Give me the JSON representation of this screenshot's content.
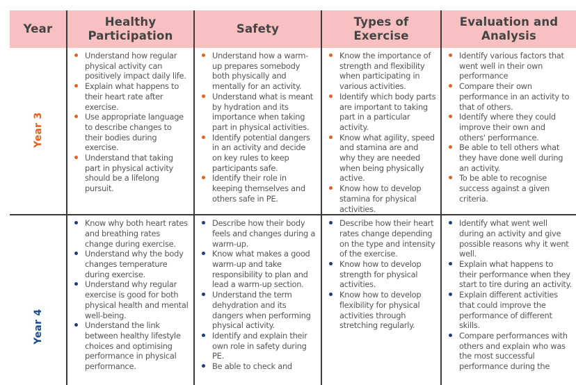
{
  "table": {
    "headers": [
      "Year",
      "Healthy Participation",
      "Safety",
      "Types of Exercise",
      "Evaluation and Analysis"
    ],
    "colors": {
      "header_bg": "#f8c0c0",
      "year3_accent": "#e8601c",
      "year4_accent": "#1f4e8c",
      "text": "#555555",
      "border": "#3a3a3a"
    },
    "rows": [
      {
        "year": "Year 3",
        "healthy_participation": [
          "Understand how regular physical activity can positively impact daily life.",
          "Explain what happens to their heart rate after exercise.",
          "Use appropriate language to describe changes to their bodies during exercise.",
          "Understand that taking part in physical activity should be a lifelong pursuit."
        ],
        "safety": [
          "Understand how a warm-up prepares somebody both physically and mentally for an activity.",
          "Understand what is meant by hydration and its importance when taking part in physical activities.",
          "Identify potential dangers in an activity and decide on key rules to keep participants safe.",
          "Identify their role in keeping themselves and others safe in PE."
        ],
        "types_of_exercise": [
          "Know the importance of strength and flexibility when participating in various activities.",
          "Identify which body parts are important to taking part in a particular activity.",
          "Know what agility, speed and stamina are and why they are needed when being physically active.",
          "Know how to develop stamina for physical activities."
        ],
        "evaluation_and_analysis": [
          "Identify various factors that went well in their own performance",
          "Compare their own performance in an activity to that of others.",
          "Identify where they could improve their own and others' performance.",
          "Be able to tell others what they have done well during an activity.",
          "To be able to recognise success against a given criteria."
        ]
      },
      {
        "year": "Year 4",
        "healthy_participation": [
          "Know why both heart rates and breathing rates change during exercise.",
          "Understand why the body changes temperature during exercise.",
          "Understand why regular exercise is good for both physical health and mental well-being.",
          "Understand the link between healthy lifestyle choices and optimising performance in physical performance."
        ],
        "safety": [
          "Describe how their body feels and changes during a warm-up.",
          "Know what makes a good warm-up and take responsibility to plan and lead a warm-up section.",
          "Understand the term dehydration and its dangers when performing physical activity.",
          "Identify and explain their own role in safety during PE.",
          "Be able to check and"
        ],
        "types_of_exercise": [
          "Describe how their heart rates change depending on the type and intensity of the exercise.",
          "Know how to develop strength for physical activities.",
          "Know how to develop flexibility for physical activities through stretching regularly."
        ],
        "evaluation_and_analysis": [
          "Identify what went well during an activity and give possible reasons why it went well.",
          "Explain what happens to their performance when they start to tire during an activity.",
          "Explain different activities that could improve the performance of different skills.",
          "Compare performances with others and explain who was the most successful performance during the"
        ]
      }
    ]
  }
}
